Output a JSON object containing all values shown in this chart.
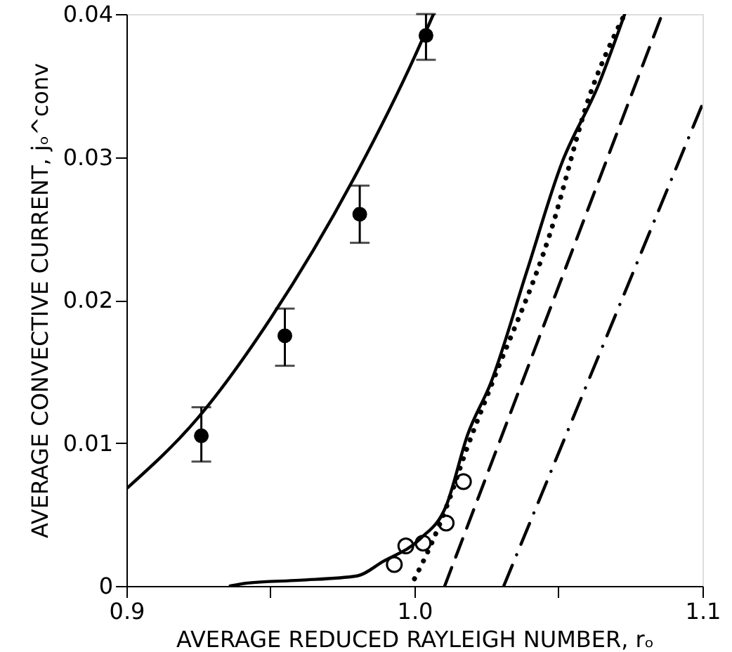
{
  "chart_data": {
    "type": "line",
    "xlabel": "AVERAGE REDUCED RAYLEIGH NUMBER, rₒ",
    "ylabel": "AVERAGE CONVECTIVE CURRENT, jₒ^conv",
    "xlim": [
      0.9,
      1.1
    ],
    "ylim": [
      0,
      0.04
    ],
    "xticks": [
      0.9,
      {
        "value": 0.95,
        "label": null
      },
      {
        "value": 1.0,
        "label": "1.0"
      },
      {
        "value": 1.05,
        "label": null
      },
      1.1
    ],
    "yticks": [
      0,
      0.01,
      0.02,
      0.03,
      0.04
    ],
    "grid": false,
    "series": [
      {
        "color": "#000000",
        "line_style": "solid",
        "x": [
          0.9,
          0.925,
          0.95,
          0.98,
          1.0,
          1.0066
        ],
        "values": [
          0.0068,
          0.0118,
          0.0187,
          0.0289,
          0.037,
          0.04
        ]
      },
      {
        "type": "scatter",
        "color": "#000000",
        "marker": "circle",
        "x": [
          0.926,
          0.955,
          0.981,
          1.004
        ],
        "values": [
          0.0105,
          0.0175,
          0.026,
          0.0385
        ],
        "errors": [
          [
            0.0087,
            0.0125
          ],
          [
            0.0154,
            0.0194
          ],
          [
            0.024,
            0.028
          ],
          [
            0.0368,
            0.04
          ]
        ]
      },
      {
        "type": "scatter",
        "color": "#000000",
        "marker": "circle_open",
        "x": [
          0.993,
          0.997,
          1.003,
          1.011,
          1.017
        ],
        "values": [
          0.0015,
          0.0028,
          0.003,
          0.0044,
          0.0073
        ]
      },
      {
        "color": "#000000",
        "line_style": "solid",
        "x": [
          0.936,
          0.942,
          0.96,
          0.98,
          0.989,
          1.002,
          1.011,
          1.0185,
          1.0265,
          1.039,
          1.051,
          1.064,
          1.073
        ],
        "values": [
          0,
          0.0002,
          0.0004,
          0.0007,
          0.0017,
          0.0033,
          0.0056,
          0.0106,
          0.0142,
          0.022,
          0.0295,
          0.0351,
          0.04
        ]
      },
      {
        "color": "#000000",
        "line_style": "dotted",
        "x": [
          1.0,
          1.006,
          1.012,
          1.018,
          1.027,
          1.047,
          1.061,
          1.073
        ],
        "values": [
          0.0005,
          0.003,
          0.006,
          0.0095,
          0.0142,
          0.0246,
          0.0344,
          0.04
        ]
      },
      {
        "color": "#000000",
        "line_style": "dashed",
        "x": [
          1.0105,
          1.086
        ],
        "values": [
          0,
          0.04
        ]
      },
      {
        "color": "#000000",
        "line_style": "dashdot",
        "x": [
          1.031,
          1.1
        ],
        "values": [
          0,
          0.0337
        ]
      }
    ]
  }
}
